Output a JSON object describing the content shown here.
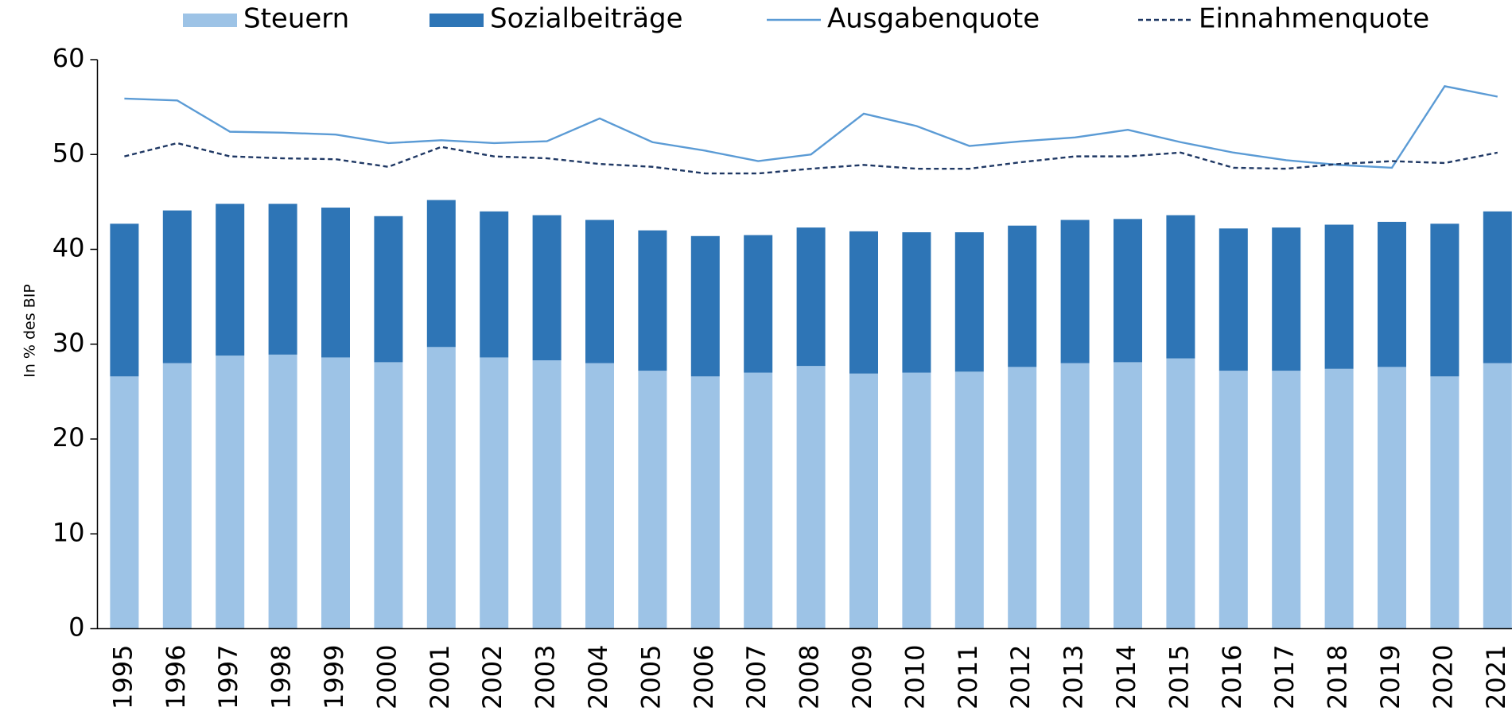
{
  "chart_data": {
    "type": "bar",
    "stacked": true,
    "y_label": "In % des BIP",
    "categories": [
      "1995",
      "1996",
      "1997",
      "1998",
      "1999",
      "2000",
      "2001",
      "2002",
      "2003",
      "2004",
      "2005",
      "2006",
      "2007",
      "2008",
      "2009",
      "2010",
      "2011",
      "2012",
      "2013",
      "2014",
      "2015",
      "2016",
      "2017",
      "2018",
      "2019",
      "2020",
      "2021"
    ],
    "series": [
      {
        "name": "Steuern",
        "type": "bar",
        "color": "#9dc3e6",
        "values": [
          26.6,
          28.0,
          28.8,
          28.9,
          28.6,
          28.1,
          29.7,
          28.6,
          28.3,
          28.0,
          27.2,
          26.6,
          27.0,
          27.7,
          26.9,
          27.0,
          27.1,
          27.6,
          28.0,
          28.1,
          28.5,
          27.2,
          27.2,
          27.4,
          27.6,
          26.6,
          28.0
        ]
      },
      {
        "name": "Sozialbeiträge",
        "type": "bar",
        "color": "#2e75b6",
        "values": [
          16.1,
          16.1,
          16.0,
          15.9,
          15.8,
          15.4,
          15.5,
          15.4,
          15.3,
          15.1,
          14.8,
          14.8,
          14.5,
          14.6,
          15.0,
          14.8,
          14.7,
          14.9,
          15.1,
          15.1,
          15.1,
          15.0,
          15.1,
          15.2,
          15.3,
          16.1,
          16.0
        ]
      },
      {
        "name": "Ausgabenquote",
        "type": "line",
        "color": "#5b9bd5",
        "dashed": false,
        "values": [
          55.9,
          55.7,
          52.4,
          52.3,
          52.1,
          51.2,
          51.5,
          51.2,
          51.4,
          53.8,
          51.3,
          50.4,
          49.3,
          50.0,
          54.3,
          53.0,
          50.9,
          51.4,
          51.8,
          52.6,
          51.3,
          50.2,
          49.4,
          48.9,
          48.6,
          57.2,
          56.1
        ]
      },
      {
        "name": "Einnahmenquote",
        "type": "line",
        "color": "#1f3864",
        "dashed": true,
        "values": [
          49.8,
          51.2,
          49.8,
          49.6,
          49.5,
          48.7,
          50.8,
          49.8,
          49.6,
          49.0,
          48.7,
          48.0,
          48.0,
          48.5,
          48.9,
          48.5,
          48.5,
          49.2,
          49.8,
          49.8,
          50.2,
          48.6,
          48.5,
          49.0,
          49.3,
          49.1,
          50.2
        ]
      }
    ],
    "ylim": [
      0,
      60
    ],
    "yticks": [
      0,
      10,
      20,
      30,
      40,
      50,
      60
    ],
    "grid": false
  }
}
